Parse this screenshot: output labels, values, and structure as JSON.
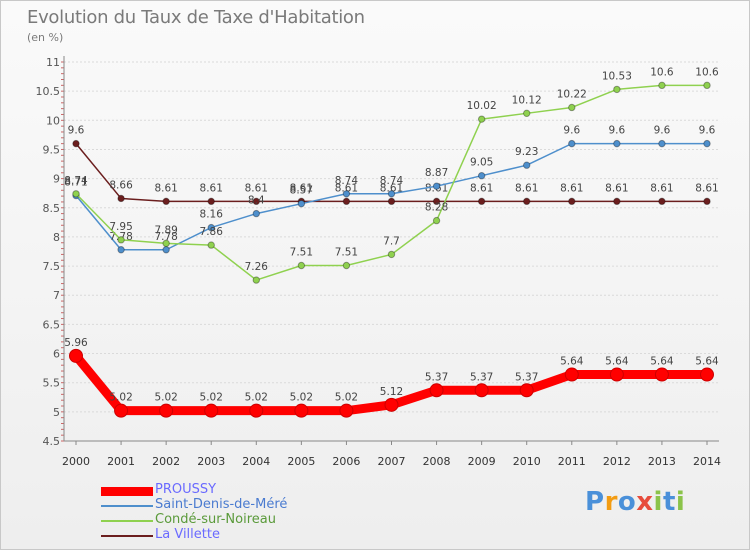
{
  "header": {
    "title": "Evolution du Taux de Taxe d'Habitation",
    "unit": "(en %)"
  },
  "legend_items": [
    {
      "label": "PROUSSY",
      "color": "#ff0000",
      "width": 9,
      "text_color": "#6a6aff"
    },
    {
      "label": "Saint-Denis-de-Méré",
      "color": "#4e8fcc",
      "width": 2,
      "text_color": "#4a7bd0"
    },
    {
      "label": "Condé-sur-Noireau",
      "color": "#8fd14f",
      "width": 2,
      "text_color": "#5a9a3a"
    },
    {
      "label": "La Villette",
      "color": "#6b1e1e",
      "width": 2,
      "text_color": "#6a6aff"
    }
  ],
  "logo": {
    "text": "Proxiti",
    "colors": [
      "#4a90d9",
      "#f39c12",
      "#4a90d9",
      "#e74c3c",
      "#8bc34a",
      "#4a90d9",
      "#8bc34a"
    ]
  },
  "chart_data": {
    "type": "line",
    "title": "Evolution du Taux de Taxe d'Habitation",
    "subtitle": "(en %)",
    "x": [
      "2000",
      "2001",
      "2002",
      "2003",
      "2004",
      "2005",
      "2006",
      "2007",
      "2008",
      "2009",
      "2010",
      "2011",
      "2012",
      "2013",
      "2014"
    ],
    "ylim": [
      4.5,
      11
    ],
    "yticks": [
      "4.5",
      "5",
      "5.5",
      "6",
      "6.5",
      "7",
      "7.5",
      "8",
      "8.5",
      "9",
      "9.5",
      "10",
      "10.5",
      "11"
    ],
    "grid": true,
    "legend_position": "bottom-left",
    "series": [
      {
        "name": "La Villette",
        "color": "#6b1e1e",
        "values": [
          9.6,
          8.66,
          8.61,
          8.61,
          8.61,
          8.61,
          8.61,
          8.61,
          8.61,
          8.61,
          8.61,
          8.61,
          8.61,
          8.61,
          8.61
        ],
        "labels": [
          "9.6",
          "8.66",
          "8.61",
          "8.61",
          "8.61",
          "8.61",
          "8.61",
          "8.61",
          "8.61",
          "8.61",
          "8.61",
          "8.61",
          "8.61",
          "8.61",
          "8.61"
        ]
      },
      {
        "name": "Saint-Denis-de-Méré",
        "color": "#4e8fcc",
        "values": [
          8.71,
          7.78,
          7.78,
          8.16,
          8.4,
          8.57,
          8.74,
          8.74,
          8.87,
          9.05,
          9.23,
          9.6,
          9.6,
          9.6,
          9.6
        ],
        "labels": [
          "8.71",
          "7.78",
          "7.78",
          "8.16",
          "8.4",
          "8.57",
          "8.74",
          "8.74",
          "8.87",
          "9.05",
          "9.23",
          "9.6",
          "9.6",
          "9.6",
          "9.6"
        ]
      },
      {
        "name": "Condé-sur-Noireau",
        "color": "#8fd14f",
        "values": [
          8.74,
          7.95,
          7.89,
          7.86,
          7.26,
          7.51,
          7.51,
          7.7,
          8.28,
          10.02,
          10.12,
          10.22,
          10.53,
          10.6,
          10.6
        ],
        "labels": [
          "8.74",
          "7.95",
          "7.89",
          "7.86",
          "7.26",
          "7.51",
          "7.51",
          "7.7",
          "8.28",
          "10.02",
          "10.12",
          "10.22",
          "10.53",
          "10.6",
          "10.6"
        ]
      },
      {
        "name": "PROUSSY",
        "color": "#ff0000",
        "values": [
          5.96,
          5.02,
          5.02,
          5.02,
          5.02,
          5.02,
          5.02,
          5.12,
          5.37,
          5.37,
          5.37,
          5.64,
          5.64,
          5.64,
          5.64
        ],
        "labels": [
          "5.96",
          "5.02",
          "5.02",
          "5.02",
          "5.02",
          "5.02",
          "5.02",
          "5.12",
          "5.37",
          "5.37",
          "5.37",
          "5.64",
          "5.64",
          "5.64",
          "5.64"
        ]
      }
    ]
  }
}
